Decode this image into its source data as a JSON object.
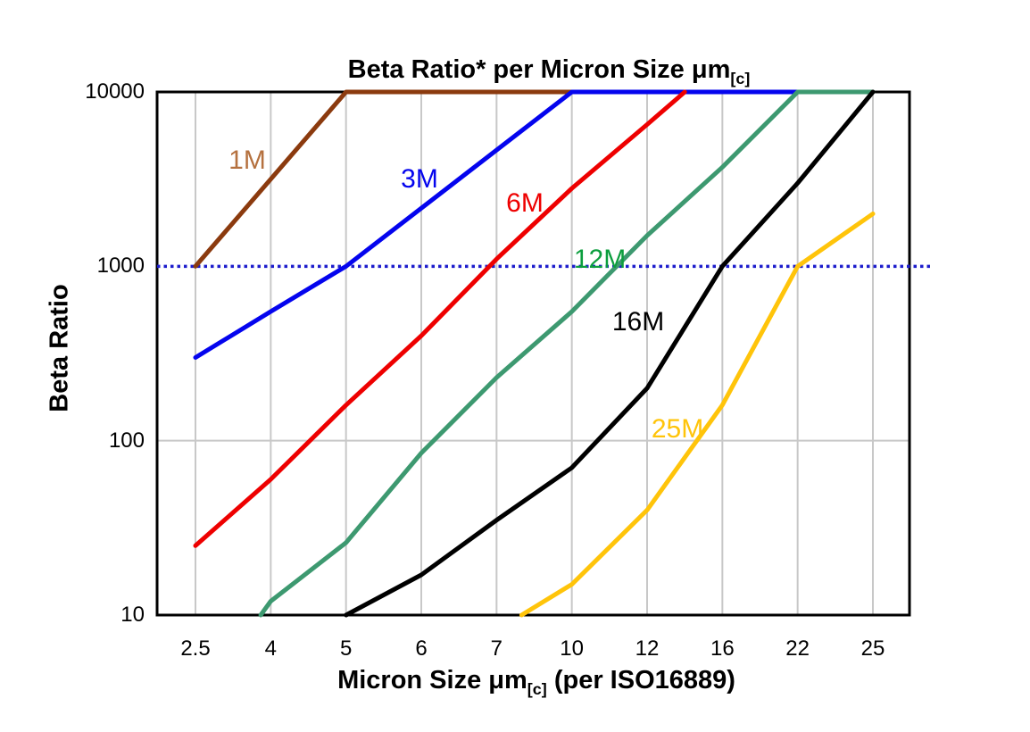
{
  "title": {
    "main": "Beta Ratio* per Micron Size ",
    "mu": "μm",
    "sub": "[c]"
  },
  "axes": {
    "y": {
      "label": "Beta Ratio",
      "scale": "log",
      "ticks": [
        "10000",
        "1000",
        "100",
        "10"
      ]
    },
    "x": {
      "label_prefix": "Micron Size ",
      "label_mu": "μm",
      "label_sub": "[c]",
      "label_suffix": " (per ISO16889)",
      "categories": [
        "2.5",
        "4",
        "5",
        "6",
        "7",
        "10",
        "12",
        "16",
        "22",
        "25"
      ]
    }
  },
  "chart_data": {
    "type": "line",
    "title": "Beta Ratio* per Micron Size μm[c]",
    "xlabel": "Micron Size μm[c] (per ISO16889)",
    "ylabel": "Beta Ratio",
    "x_categories": [
      2.5,
      4,
      5,
      6,
      7,
      10,
      12,
      16,
      22,
      25
    ],
    "y_scale": "log",
    "ylim": [
      10,
      10000
    ],
    "grid": true,
    "reference_line": {
      "y": 1000,
      "style": "dotted",
      "color": "#1d1dcc"
    },
    "series": [
      {
        "name": "1M",
        "color": "#8b3a0e",
        "label_color": "#b5713f",
        "points": [
          [
            2.5,
            1000
          ],
          [
            5,
            10000
          ],
          [
            10,
            10000
          ]
        ]
      },
      {
        "name": "3M",
        "color": "#0404ee",
        "label_color": "#0404ee",
        "points": [
          [
            2.5,
            300
          ],
          [
            4,
            550
          ],
          [
            5,
            1000
          ],
          [
            10,
            10000
          ],
          [
            22,
            10000
          ]
        ]
      },
      {
        "name": "6M",
        "color": "#ee0000",
        "label_color": "#ee0000",
        "points": [
          [
            2.5,
            25
          ],
          [
            4,
            60
          ],
          [
            5,
            160
          ],
          [
            6,
            400
          ],
          [
            7,
            1100
          ],
          [
            10,
            2800
          ],
          [
            12,
            6500
          ],
          [
            14,
            10000
          ]
        ]
      },
      {
        "name": "12M",
        "color": "#3d9970",
        "label_color": "#0c9e3e",
        "points": [
          [
            3.8,
            10
          ],
          [
            4,
            12
          ],
          [
            5,
            26
          ],
          [
            6,
            85
          ],
          [
            7,
            230
          ],
          [
            10,
            550
          ],
          [
            12,
            1500
          ],
          [
            16,
            3700
          ],
          [
            22,
            10000
          ],
          [
            25,
            10000
          ]
        ]
      },
      {
        "name": "16M",
        "color": "#000000",
        "label_color": "#000000",
        "points": [
          [
            5,
            10
          ],
          [
            6,
            17
          ],
          [
            7,
            35
          ],
          [
            10,
            70
          ],
          [
            12,
            200
          ],
          [
            16,
            1000
          ],
          [
            22,
            3000
          ],
          [
            25,
            10000
          ]
        ]
      },
      {
        "name": "25M",
        "color": "#ffc40a",
        "label_color": "#ffc40a",
        "points": [
          [
            8,
            10
          ],
          [
            10,
            15
          ],
          [
            12,
            40
          ],
          [
            16,
            160
          ],
          [
            22,
            1000
          ],
          [
            25,
            2000
          ]
        ]
      }
    ]
  },
  "colors": {
    "grid": "#c8c8c8",
    "border": "#000000",
    "background": "#ffffff"
  }
}
